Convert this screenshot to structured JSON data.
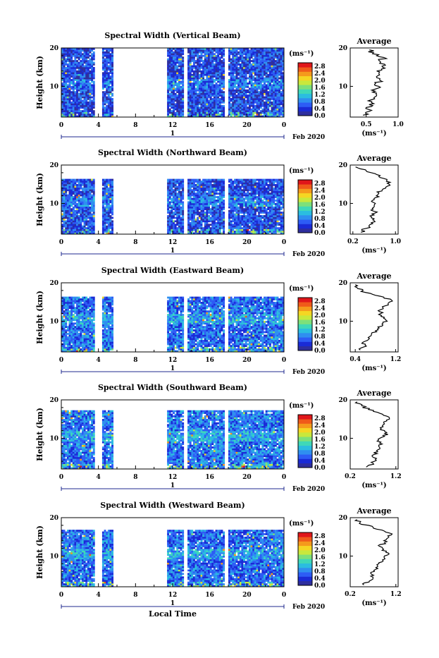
{
  "chart_data": [
    {
      "type": "heatmap",
      "title": "Spectral Width (Vertical Beam)",
      "ylabel": "Height (km)",
      "ylim": [
        2,
        20
      ],
      "yticks": [
        "20",
        "10"
      ],
      "xlim": [
        0,
        24
      ],
      "xticks": [
        "0",
        "4",
        "8",
        "12",
        "16",
        "20",
        "0"
      ],
      "day_label": "1",
      "date_label": "Feb 2020",
      "colorbar": {
        "unit": "(ms⁻¹)",
        "ticks": [
          "2.8",
          "2.4",
          "2.0",
          "1.6",
          "1.2",
          "0.8",
          "0.4",
          "0.0"
        ],
        "range": [
          0,
          3.0
        ],
        "colors": [
          "#2e2e9e",
          "#1a2bd6",
          "#2d5cf5",
          "#2f8ff0",
          "#2bbde0",
          "#3fd8b8",
          "#7de07a",
          "#c8e83c",
          "#f5d623",
          "#f59a1c",
          "#f05a1a",
          "#e0161a"
        ]
      },
      "data_gaps_hours": [
        [
          3.6,
          4.4
        ],
        [
          5.6,
          11.4
        ],
        [
          13.2,
          13.6
        ],
        [
          17.6,
          18.0
        ]
      ],
      "data_top_km": 20.2,
      "base_width_ms": 0.45,
      "average_profile": {
        "title": "Average",
        "xlabel": "(ms⁻¹)",
        "xlim": [
          0.25,
          1.0
        ],
        "xticks": [
          "0.5",
          "1.0"
        ],
        "yticks": [
          "20",
          "10"
        ],
        "height_km": [
          2.5,
          3.5,
          4.5,
          5.5,
          6.5,
          7.5,
          8.5,
          9.5,
          10.5,
          11.5,
          12.5,
          13.5,
          14.5,
          15.5,
          16.5,
          17.5,
          18.5,
          19.5
        ],
        "width_ms": [
          0.45,
          0.55,
          0.5,
          0.62,
          0.58,
          0.66,
          0.6,
          0.68,
          0.63,
          0.72,
          0.66,
          0.7,
          0.74,
          0.8,
          0.72,
          0.78,
          0.6,
          0.55
        ]
      }
    },
    {
      "type": "heatmap",
      "title": "Spectral Width (Northward Beam)",
      "ylabel": "Height (km)",
      "ylim": [
        2,
        20
      ],
      "yticks": [
        "20",
        "10"
      ],
      "xlim": [
        0,
        24
      ],
      "xticks": [
        "0",
        "4",
        "8",
        "12",
        "16",
        "20",
        "0"
      ],
      "day_label": "1",
      "date_label": "Feb 2020",
      "colorbar": {
        "unit": "(ms⁻¹)",
        "ticks": [
          "2.8",
          "2.4",
          "2.0",
          "1.6",
          "1.2",
          "0.8",
          "0.4",
          "0.0"
        ],
        "range": [
          0,
          3.0
        ],
        "colors": [
          "#2e2e9e",
          "#1a2bd6",
          "#2d5cf5",
          "#2f8ff0",
          "#2bbde0",
          "#3fd8b8",
          "#7de07a",
          "#c8e83c",
          "#f5d623",
          "#f59a1c",
          "#f05a1a",
          "#e0161a"
        ]
      },
      "data_gaps_hours": [
        [
          3.6,
          4.4
        ],
        [
          5.6,
          11.4
        ],
        [
          13.2,
          13.6
        ],
        [
          17.6,
          18.0
        ]
      ],
      "data_top_km": 16.5,
      "base_width_ms": 0.5,
      "average_profile": {
        "title": "Average",
        "xlabel": "(ms⁻¹)",
        "xlim": [
          0.15,
          1.05
        ],
        "xticks": [
          "0.2",
          "1.0"
        ],
        "yticks": [
          "20",
          "10"
        ],
        "height_km": [
          2.5,
          3.5,
          4.5,
          5.5,
          6.5,
          7.5,
          8.5,
          9.5,
          10.5,
          11.5,
          12.5,
          13.5,
          14.5,
          15.5,
          16.5,
          17.5,
          18.5,
          19.5
        ],
        "width_ms": [
          0.35,
          0.45,
          0.52,
          0.6,
          0.55,
          0.62,
          0.58,
          0.6,
          0.55,
          0.62,
          0.68,
          0.75,
          0.85,
          0.9,
          0.78,
          0.65,
          0.45,
          0.25
        ]
      }
    },
    {
      "type": "heatmap",
      "title": "Spectral Width (Eastward Beam)",
      "ylabel": "Height (km)",
      "ylim": [
        2,
        20
      ],
      "yticks": [
        "20",
        "10"
      ],
      "xlim": [
        0,
        24
      ],
      "xticks": [
        "0",
        "4",
        "8",
        "12",
        "16",
        "20",
        "0"
      ],
      "day_label": "1",
      "date_label": "Feb 2020",
      "colorbar": {
        "unit": "(ms⁻¹)",
        "ticks": [
          "2.8",
          "2.4",
          "2.0",
          "1.6",
          "1.2",
          "0.8",
          "0.4",
          "0.0"
        ],
        "range": [
          0,
          3.0
        ],
        "colors": [
          "#2e2e9e",
          "#1a2bd6",
          "#2d5cf5",
          "#2f8ff0",
          "#2bbde0",
          "#3fd8b8",
          "#7de07a",
          "#c8e83c",
          "#f5d623",
          "#f59a1c",
          "#f05a1a",
          "#e0161a"
        ]
      },
      "data_gaps_hours": [
        [
          3.6,
          4.4
        ],
        [
          5.6,
          11.4
        ],
        [
          13.2,
          13.6
        ],
        [
          17.6,
          18.0
        ]
      ],
      "data_top_km": 16.5,
      "base_width_ms": 0.65,
      "average_profile": {
        "title": "Average",
        "xlabel": "(ms⁻¹)",
        "xlim": [
          0.3,
          1.25
        ],
        "xticks": [
          "0.4",
          "1.2"
        ],
        "yticks": [
          "20",
          "10"
        ],
        "height_km": [
          2.5,
          3.5,
          4.5,
          5.5,
          6.5,
          7.5,
          8.5,
          9.5,
          10.5,
          11.5,
          12.5,
          13.5,
          14.5,
          15.5,
          16.5,
          17.5,
          18.5,
          19.5
        ],
        "width_ms": [
          0.5,
          0.62,
          0.55,
          0.68,
          0.72,
          0.8,
          0.85,
          0.95,
          1.0,
          0.92,
          0.88,
          0.95,
          1.05,
          1.12,
          0.9,
          0.6,
          0.45,
          0.4
        ]
      }
    },
    {
      "type": "heatmap",
      "title": "Spectral Width (Southward Beam)",
      "ylabel": "Height (km)",
      "ylim": [
        2,
        20
      ],
      "yticks": [
        "20",
        "10"
      ],
      "xlim": [
        0,
        24
      ],
      "xticks": [
        "0",
        "4",
        "8",
        "12",
        "16",
        "20",
        "0"
      ],
      "day_label": "1",
      "date_label": "Feb 2020",
      "colorbar": {
        "unit": "(ms⁻¹)",
        "ticks": [
          "2.8",
          "2.4",
          "2.0",
          "1.6",
          "1.2",
          "0.8",
          "0.4",
          "0.0"
        ],
        "range": [
          0,
          3.0
        ],
        "colors": [
          "#2e2e9e",
          "#1a2bd6",
          "#2d5cf5",
          "#2f8ff0",
          "#2bbde0",
          "#3fd8b8",
          "#7de07a",
          "#c8e83c",
          "#f5d623",
          "#f59a1c",
          "#f05a1a",
          "#e0161a"
        ]
      },
      "data_gaps_hours": [
        [
          3.6,
          4.4
        ],
        [
          5.6,
          11.4
        ],
        [
          13.2,
          13.6
        ],
        [
          17.6,
          18.0
        ]
      ],
      "data_top_km": 17.5,
      "base_width_ms": 0.7,
      "average_profile": {
        "title": "Average",
        "xlabel": "(ms⁻¹)",
        "xlim": [
          0.2,
          1.25
        ],
        "xticks": [
          "0.2",
          "1.2"
        ],
        "yticks": [
          "20",
          "10"
        ],
        "height_km": [
          2.5,
          3.5,
          4.5,
          5.5,
          6.5,
          7.5,
          8.5,
          9.5,
          10.5,
          11.5,
          12.5,
          13.5,
          14.5,
          15.5,
          16.5,
          17.5,
          18.5,
          19.5
        ],
        "width_ms": [
          0.55,
          0.7,
          0.75,
          0.68,
          0.8,
          0.85,
          0.9,
          0.82,
          0.95,
          1.0,
          0.88,
          0.92,
          1.0,
          1.05,
          0.85,
          0.6,
          0.45,
          0.35
        ]
      }
    },
    {
      "type": "heatmap",
      "title": "Spectral Width (Westward Beam)",
      "ylabel": "Height (km)",
      "ylim": [
        2,
        20
      ],
      "yticks": [
        "20",
        "10"
      ],
      "xlim": [
        0,
        24
      ],
      "xticks": [
        "0",
        "4",
        "8",
        "12",
        "16",
        "20",
        "0"
      ],
      "day_label": "1",
      "date_label": "Feb 2020",
      "xlabel": "Local Time",
      "colorbar": {
        "unit": "(ms⁻¹)",
        "ticks": [
          "2.8",
          "2.4",
          "2.0",
          "1.6",
          "1.2",
          "0.8",
          "0.4",
          "0.0"
        ],
        "range": [
          0,
          3.0
        ],
        "colors": [
          "#2e2e9e",
          "#1a2bd6",
          "#2d5cf5",
          "#2f8ff0",
          "#2bbde0",
          "#3fd8b8",
          "#7de07a",
          "#c8e83c",
          "#f5d623",
          "#f59a1c",
          "#f05a1a",
          "#e0161a"
        ]
      },
      "data_gaps_hours": [
        [
          3.6,
          4.4
        ],
        [
          5.6,
          11.4
        ],
        [
          13.2,
          13.6
        ],
        [
          17.6,
          18.0
        ]
      ],
      "data_top_km": 17.0,
      "base_width_ms": 0.65,
      "average_profile": {
        "title": "Average",
        "xlabel": "(ms⁻¹)",
        "xlim": [
          0.2,
          1.25
        ],
        "xticks": [
          "0.2",
          "1.2"
        ],
        "yticks": [
          "20",
          "10"
        ],
        "height_km": [
          2.5,
          3.5,
          4.5,
          5.5,
          6.5,
          7.5,
          8.5,
          9.5,
          10.5,
          11.5,
          12.5,
          13.5,
          14.5,
          15.5,
          16.5,
          17.5,
          18.5,
          19.5
        ],
        "width_ms": [
          0.5,
          0.62,
          0.7,
          0.65,
          0.75,
          0.8,
          0.9,
          0.95,
          1.05,
          0.9,
          0.85,
          0.95,
          1.0,
          1.1,
          0.95,
          0.7,
          0.4,
          0.35
        ]
      }
    }
  ]
}
